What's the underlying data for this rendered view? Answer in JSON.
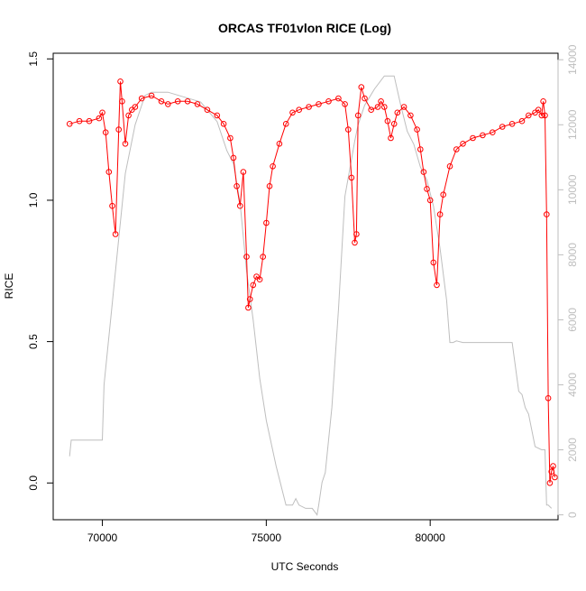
{
  "chart_data": {
    "type": "line",
    "title": "ORCAS TF01vlon RICE (Log)",
    "xlabel": "UTC Seconds",
    "ylabel": "RICE",
    "xlim": [
      68500,
      83900
    ],
    "ylim": [
      -0.13,
      1.52
    ],
    "y2lim": [
      -150,
      14200
    ],
    "x_ticks": [
      70000,
      75000,
      80000
    ],
    "x_tick_labels": [
      "70000",
      "75000",
      "80000"
    ],
    "y_ticks": [
      0.0,
      0.5,
      1.0,
      1.5
    ],
    "y_tick_labels": [
      "0.0",
      "0.5",
      "1.0",
      "1.5"
    ],
    "y2_ticks": [
      0,
      2000,
      4000,
      6000,
      8000,
      10000,
      12000,
      14000
    ],
    "y2_tick_labels": [
      "0",
      "2000",
      "4000",
      "6000",
      "8000",
      "10000",
      "12000",
      "14000"
    ],
    "colors": {
      "rice": "#ff0000",
      "altitude": "#bebebe",
      "frame": "#000000"
    },
    "rice_series": {
      "x": [
        69000,
        69300,
        69600,
        69900,
        70000,
        70100,
        70200,
        70300,
        70400,
        70500,
        70550,
        70600,
        70700,
        70800,
        70900,
        71000,
        71200,
        71500,
        71800,
        72000,
        72300,
        72600,
        72900,
        73200,
        73500,
        73700,
        73900,
        74000,
        74100,
        74200,
        74300,
        74400,
        74450,
        74500,
        74600,
        74700,
        74800,
        74900,
        75000,
        75100,
        75200,
        75400,
        75600,
        75800,
        76000,
        76300,
        76600,
        76900,
        77200,
        77400,
        77500,
        77600,
        77700,
        77750,
        77800,
        77900,
        78000,
        78200,
        78400,
        78500,
        78600,
        78700,
        78800,
        78900,
        79000,
        79200,
        79400,
        79600,
        79700,
        79800,
        79900,
        80000,
        80100,
        80200,
        80300,
        80400,
        80600,
        80800,
        81000,
        81300,
        81600,
        81900,
        82200,
        82500,
        82800,
        83000,
        83200,
        83300,
        83400,
        83450,
        83500,
        83550,
        83600,
        83650,
        83700,
        83750,
        83800
      ],
      "y": [
        1.27,
        1.28,
        1.28,
        1.29,
        1.31,
        1.24,
        1.1,
        0.98,
        0.88,
        1.25,
        1.42,
        1.35,
        1.2,
        1.3,
        1.32,
        1.33,
        1.36,
        1.37,
        1.35,
        1.34,
        1.35,
        1.35,
        1.34,
        1.32,
        1.3,
        1.27,
        1.22,
        1.15,
        1.05,
        0.98,
        1.1,
        0.8,
        0.62,
        0.65,
        0.7,
        0.73,
        0.72,
        0.8,
        0.92,
        1.05,
        1.12,
        1.2,
        1.27,
        1.31,
        1.32,
        1.33,
        1.34,
        1.35,
        1.36,
        1.34,
        1.25,
        1.08,
        0.85,
        0.88,
        1.3,
        1.4,
        1.36,
        1.32,
        1.33,
        1.35,
        1.33,
        1.28,
        1.22,
        1.27,
        1.31,
        1.33,
        1.3,
        1.25,
        1.18,
        1.1,
        1.04,
        1.0,
        0.78,
        0.7,
        0.95,
        1.02,
        1.12,
        1.18,
        1.2,
        1.22,
        1.23,
        1.24,
        1.26,
        1.27,
        1.28,
        1.3,
        1.31,
        1.32,
        1.3,
        1.35,
        1.3,
        0.95,
        0.3,
        0.0,
        0.04,
        0.06,
        0.02
      ]
    },
    "altitude_series": {
      "x": [
        69000,
        69050,
        69500,
        70000,
        70050,
        70300,
        70500,
        70700,
        71000,
        71300,
        71500,
        72000,
        73000,
        73500,
        73800,
        74000,
        74200,
        74400,
        74600,
        74800,
        75000,
        75300,
        75600,
        75800,
        75900,
        76000,
        76200,
        76400,
        76550,
        76600,
        76700,
        76800,
        77000,
        77200,
        77400,
        77700,
        77800,
        78000,
        78300,
        78600,
        78900,
        79100,
        79300,
        79500,
        79700,
        79900,
        80100,
        80300,
        80500,
        80600,
        80700,
        80800,
        81000,
        81500,
        82000,
        82500,
        82700,
        82800,
        82900,
        83000,
        83200,
        83400,
        83500,
        83550,
        83600,
        83700
      ],
      "y": [
        1800,
        2300,
        2300,
        2300,
        4000,
        6500,
        8500,
        10500,
        12000,
        12900,
        13000,
        13000,
        12700,
        12100,
        11200,
        10800,
        9600,
        7500,
        6000,
        4200,
        2900,
        1500,
        300,
        300,
        500,
        300,
        200,
        200,
        0,
        300,
        1000,
        1300,
        3300,
        6300,
        9800,
        11500,
        12000,
        12600,
        13100,
        13500,
        13500,
        12600,
        11800,
        11400,
        10700,
        10300,
        9500,
        8200,
        6600,
        5300,
        5300,
        5350,
        5300,
        5300,
        5300,
        5300,
        3800,
        3700,
        3300,
        3100,
        2100,
        2000,
        2000,
        300,
        300,
        200
      ]
    }
  }
}
